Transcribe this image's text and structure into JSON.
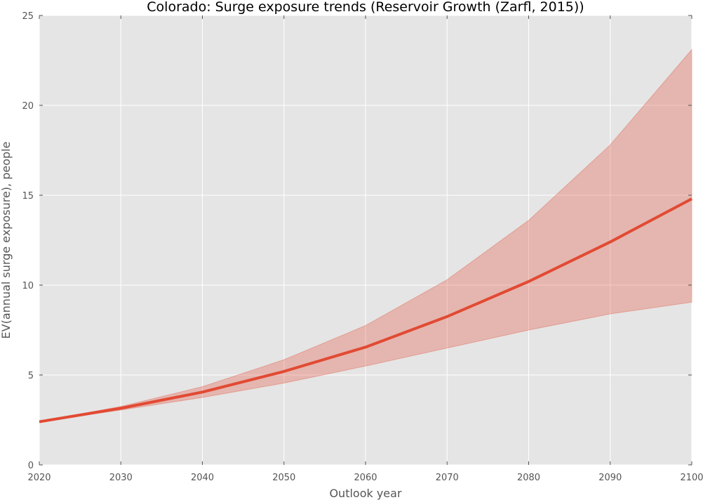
{
  "chart_data": {
    "type": "line",
    "title": "Colorado: Surge exposure trends (Reservoir Growth (Zarfl, 2015))",
    "xlabel": "Outlook year",
    "ylabel": "EV(annual surge exposure), people",
    "xlim": [
      2020,
      2100
    ],
    "ylim": [
      0,
      25
    ],
    "xticks": [
      2020,
      2030,
      2040,
      2050,
      2060,
      2070,
      2080,
      2090,
      2100
    ],
    "yticks": [
      0,
      5,
      10,
      15,
      20,
      25
    ],
    "grid": true,
    "legend": "none",
    "x": [
      2020,
      2030,
      2040,
      2050,
      2060,
      2070,
      2080,
      2090,
      2100
    ],
    "series": [
      {
        "values": [
          2.4,
          3.15,
          4.05,
          5.2,
          6.55,
          8.25,
          10.2,
          12.4,
          14.8
        ],
        "lower": [
          2.4,
          3.05,
          3.75,
          4.55,
          5.5,
          6.5,
          7.5,
          8.4,
          9.05
        ],
        "upper": [
          2.4,
          3.25,
          4.35,
          5.85,
          7.75,
          10.3,
          13.6,
          17.8,
          23.1
        ],
        "color": "#e24a33"
      }
    ],
    "colors": {
      "plot_background": "#e5e5e5",
      "band": "#e24a33",
      "line": "#e24a33"
    }
  }
}
